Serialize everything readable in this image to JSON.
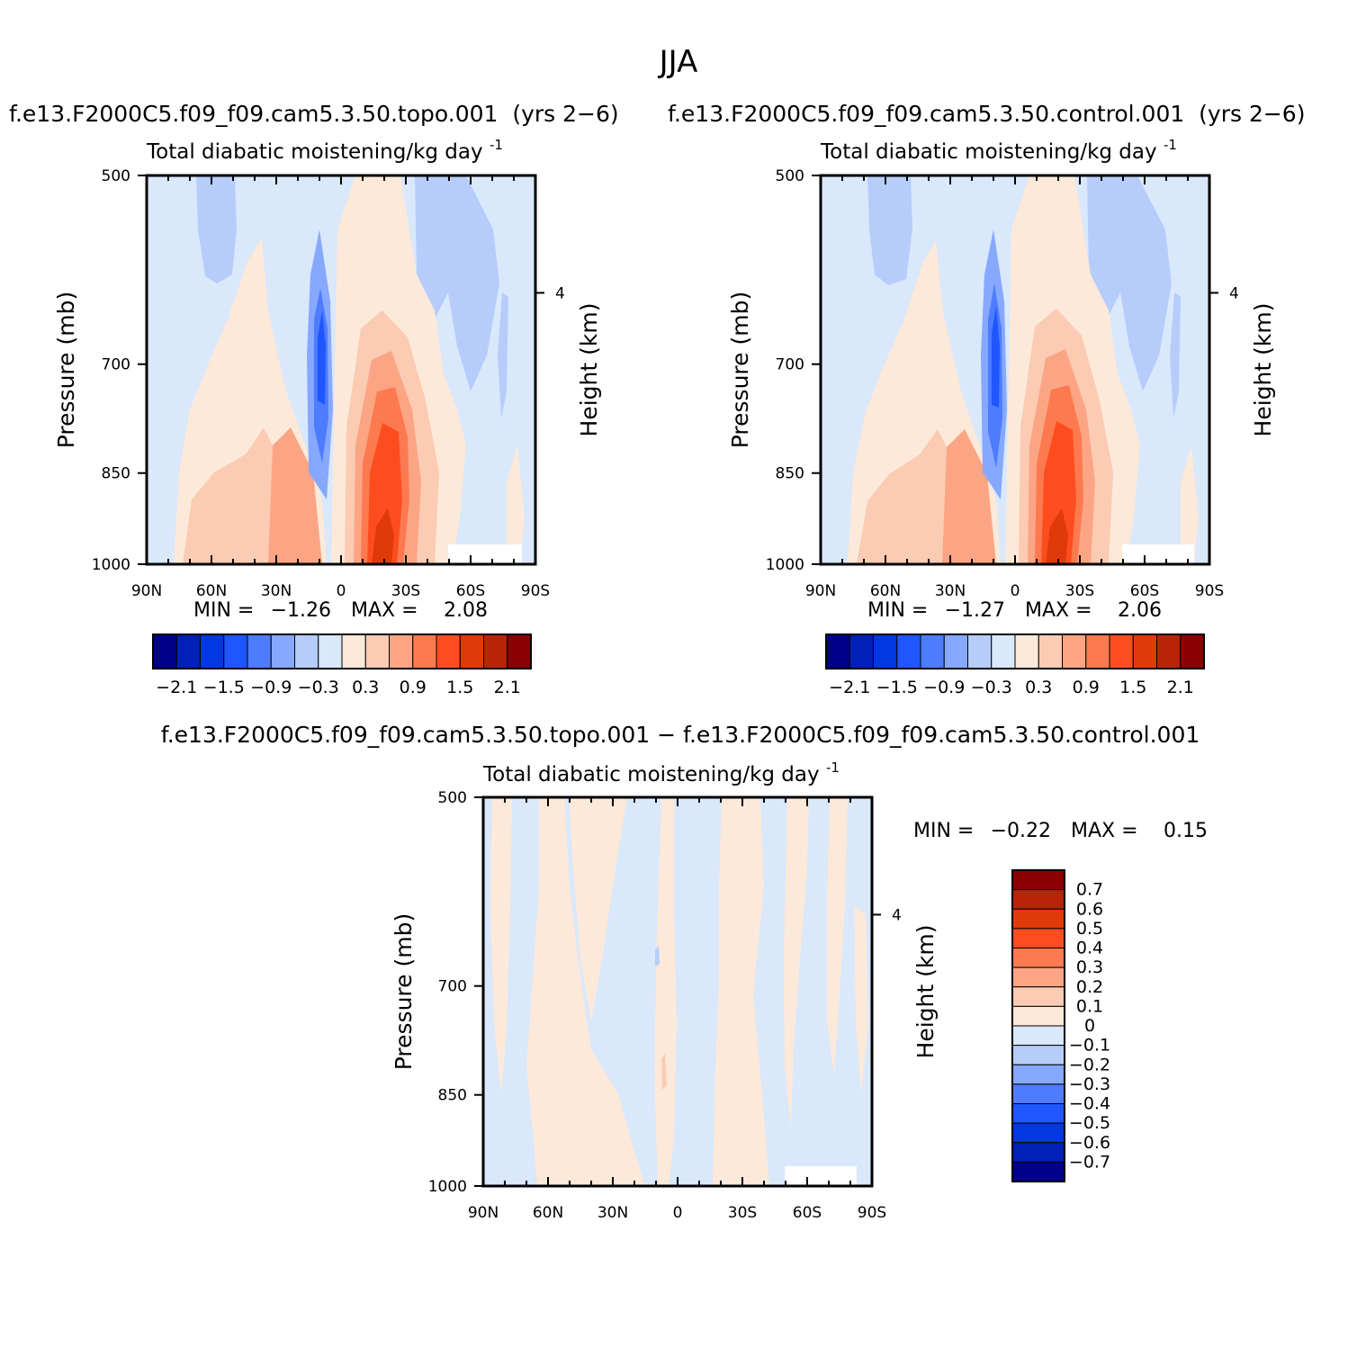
{
  "figure": {
    "season_title": "JJA"
  },
  "panels": [
    {
      "id": "topo",
      "header": "f.e13.F2000C5.f09_f09.cam5.3.50.topo.001  (yrs 2-6)",
      "title": "Total diabatic moistening/kg day",
      "title_exponent": "-1",
      "y_label": "Pressure (mb)",
      "y2_label": "Height (km)",
      "stats": {
        "min_label": "MIN =",
        "min": "-1.26",
        "max_label": "MAX =",
        "max": "2.08"
      }
    },
    {
      "id": "control",
      "header": "f.e13.F2000C5.f09_f09.cam5.3.50.control.001  (yrs 2-6)",
      "title": "Total diabatic moistening/kg day",
      "title_exponent": "-1",
      "y_label": "Pressure (mb)",
      "y2_label": "Height (km)",
      "stats": {
        "min_label": "MIN =",
        "min": "-1.27",
        "max_label": "MAX =",
        "max": "2.06"
      }
    },
    {
      "id": "difference",
      "header": "f.e13.F2000C5.f09_f09.cam5.3.50.topo.001 - f.e13.F2000C5.f09_f09.cam5.3.50.control.001",
      "title": "Total diabatic moistening/kg day",
      "title_exponent": "-1",
      "y_label": "Pressure (mb)",
      "y2_label": "Height (km)",
      "stats": {
        "min_label": "MIN =",
        "min": "-0.22",
        "max_label": "MAX =",
        "max": "0.15"
      }
    }
  ],
  "chart_data": [
    {
      "type": "heatmap",
      "panel": "topo",
      "title": "Total diabatic moistening/kg day-1",
      "xlabel": "",
      "ylabel": "Pressure (mb)",
      "y2label": "Height (km)",
      "x_ticks": [
        "90N",
        "60N",
        "30N",
        "0",
        "30S",
        "60S",
        "90S"
      ],
      "x_lat": [
        90,
        60,
        30,
        0,
        -30,
        -60,
        -90
      ],
      "y_ticks": [
        "500",
        "700",
        "850",
        "1000"
      ],
      "y_pressure": [
        500,
        700,
        850,
        1000
      ],
      "y2_ticks": [
        "4"
      ],
      "y2_height_km": [
        4
      ],
      "ylim": [
        1000,
        500
      ],
      "min": -1.26,
      "max": 2.08,
      "colorbar": {
        "orientation": "horizontal",
        "colors": [
          "#00008b",
          "#0020b8",
          "#0238e0",
          "#1f56ff",
          "#4d7cff",
          "#86a8ff",
          "#b6cdfb",
          "#d9e8fb",
          "#fde9d9",
          "#fbcbb3",
          "#fba585",
          "#fd7a50",
          "#fd4d1f",
          "#e03a08",
          "#b82407",
          "#8b0000"
        ],
        "tick_labels": [
          "-2.1",
          "-1.5",
          "-0.9",
          "-0.3",
          "0.3",
          "0.9",
          "1.5",
          "2.1"
        ]
      }
    },
    {
      "type": "heatmap",
      "panel": "control",
      "title": "Total diabatic moistening/kg day-1",
      "xlabel": "",
      "ylabel": "Pressure (mb)",
      "y2label": "Height (km)",
      "x_ticks": [
        "90N",
        "60N",
        "30N",
        "0",
        "30S",
        "60S",
        "90S"
      ],
      "x_lat": [
        90,
        60,
        30,
        0,
        -30,
        -60,
        -90
      ],
      "y_ticks": [
        "500",
        "700",
        "850",
        "1000"
      ],
      "y_pressure": [
        500,
        700,
        850,
        1000
      ],
      "y2_ticks": [
        "4"
      ],
      "y2_height_km": [
        4
      ],
      "ylim": [
        1000,
        500
      ],
      "min": -1.27,
      "max": 2.06,
      "colorbar": {
        "orientation": "horizontal",
        "colors": [
          "#00008b",
          "#0020b8",
          "#0238e0",
          "#1f56ff",
          "#4d7cff",
          "#86a8ff",
          "#b6cdfb",
          "#d9e8fb",
          "#fde9d9",
          "#fbcbb3",
          "#fba585",
          "#fd7a50",
          "#fd4d1f",
          "#e03a08",
          "#b82407",
          "#8b0000"
        ],
        "tick_labels": [
          "-2.1",
          "-1.5",
          "-0.9",
          "-0.3",
          "0.3",
          "0.9",
          "1.5",
          "2.1"
        ]
      }
    },
    {
      "type": "heatmap",
      "panel": "difference",
      "title": "Total diabatic moistening/kg day-1",
      "xlabel": "",
      "ylabel": "Pressure (mb)",
      "y2label": "Height (km)",
      "x_ticks": [
        "90N",
        "60N",
        "30N",
        "0",
        "30S",
        "60S",
        "90S"
      ],
      "x_lat": [
        90,
        60,
        30,
        0,
        -30,
        -60,
        -90
      ],
      "y_ticks": [
        "500",
        "700",
        "850",
        "1000"
      ],
      "y_pressure": [
        500,
        700,
        850,
        1000
      ],
      "y2_ticks": [
        "4"
      ],
      "y2_height_km": [
        4
      ],
      "ylim": [
        1000,
        500
      ],
      "min": -0.22,
      "max": 0.15,
      "colorbar": {
        "orientation": "vertical",
        "colors": [
          "#8b0000",
          "#b82407",
          "#e03a08",
          "#fd4d1f",
          "#fd7a50",
          "#fba585",
          "#fbcbb3",
          "#fde9d9",
          "#d9e8fb",
          "#b6cdfb",
          "#86a8ff",
          "#4d7cff",
          "#1f56ff",
          "#0238e0",
          "#0020b8",
          "#00008b"
        ],
        "tick_labels": [
          "0.7",
          "0.6",
          "0.5",
          "0.4",
          "0.3",
          "0.2",
          "0.1",
          "0",
          "-0.1",
          "-0.2",
          "-0.3",
          "-0.4",
          "-0.5",
          "-0.6",
          "-0.7"
        ]
      }
    }
  ]
}
